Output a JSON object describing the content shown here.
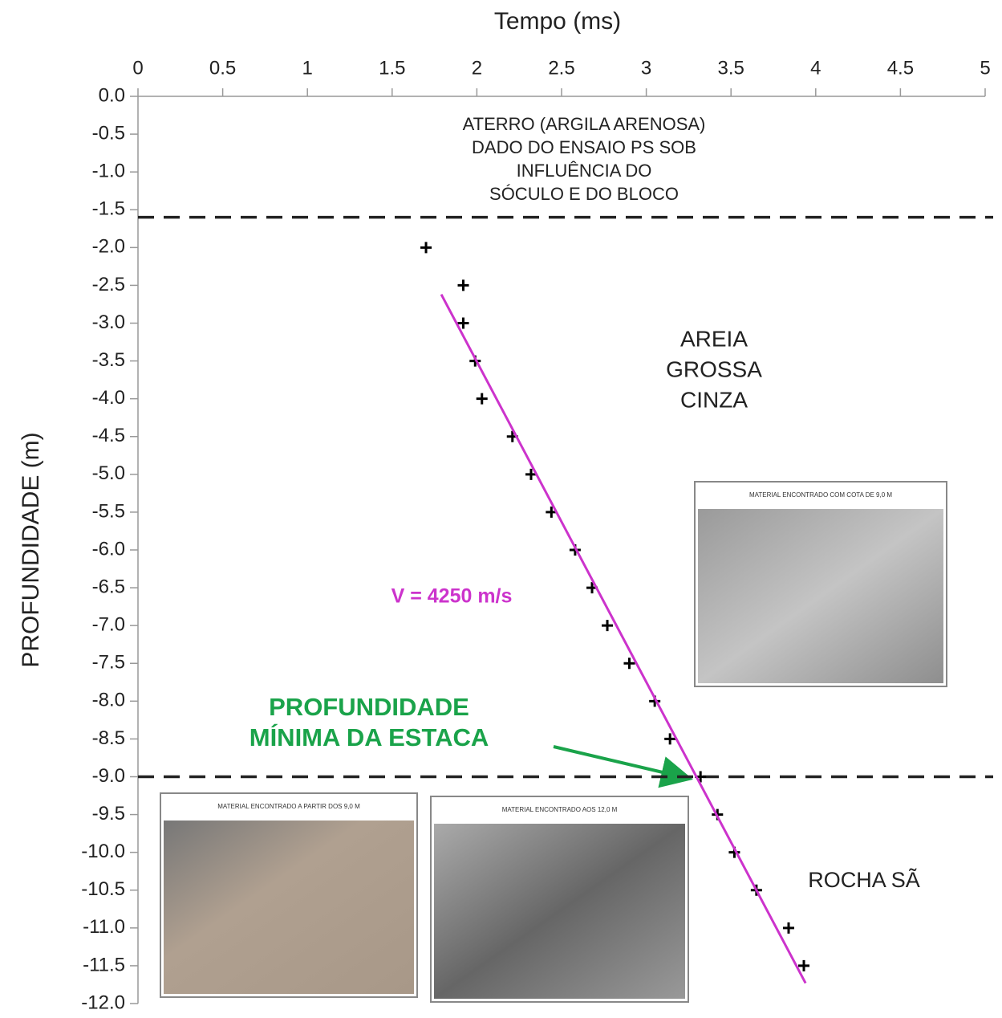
{
  "chart_data": {
    "type": "scatter",
    "x_label": "Tempo (ms)",
    "y_label": "PROFUNDIDADE (m)",
    "xlim": [
      0,
      5
    ],
    "xticks": [
      0,
      0.5,
      1,
      1.5,
      2,
      2.5,
      3,
      3.5,
      4,
      4.5,
      5
    ],
    "ylim": [
      -12,
      0
    ],
    "yticks": [
      {
        "value": 0,
        "label": "0.0"
      },
      -0.5,
      {
        "value": -1,
        "label": "-1.0"
      },
      -1.5,
      {
        "value": -2,
        "label": "-2.0"
      },
      -2.5,
      {
        "value": -3,
        "label": "-3.0"
      },
      -3.5,
      {
        "value": -4,
        "label": "-4.0"
      },
      -4.5,
      {
        "value": -5,
        "label": "-5.0"
      },
      -5.5,
      {
        "value": -6,
        "label": "-6.0"
      },
      -6.5,
      {
        "value": -7,
        "label": "-7.0"
      },
      -7.5,
      {
        "value": -8,
        "label": "-8.0"
      },
      -8.5,
      {
        "value": -9,
        "label": "-9.0"
      },
      -9.5,
      {
        "value": -10,
        "label": "-10.0"
      },
      -10.5,
      {
        "value": -11,
        "label": "-11.0"
      },
      -11.5,
      {
        "value": -12,
        "label": "-12.0"
      }
    ],
    "series": [
      {
        "type": "scatter",
        "color": "#000000",
        "x": [
          1.7,
          1.92,
          1.92,
          1.99,
          2.03,
          2.21,
          2.32,
          2.44,
          2.58,
          2.68,
          2.77,
          2.9,
          3.05,
          3.14,
          3.32,
          3.42,
          3.52,
          3.65,
          3.84,
          3.93
        ],
        "values": [
          -2.0,
          -2.5,
          -3.0,
          -3.5,
          -4.0,
          -4.5,
          -5.0,
          -5.5,
          -6.0,
          -6.5,
          -7.0,
          -7.5,
          -8.0,
          -8.5,
          -9.0,
          -9.5,
          -10.0,
          -10.5,
          -11.0,
          -11.5
        ]
      },
      {
        "type": "line",
        "color": "#cc33cc",
        "x": [
          1.79,
          3.94
        ],
        "values": [
          -2.62,
          -11.73
        ]
      }
    ],
    "hlines": [
      -1.6,
      -9.0
    ],
    "annotations": [
      {
        "lines": [
          "ATERRO (ARGILA ARENOSA)",
          "DADO DO ENSAIO PS SOB",
          "INFLUÊNCIA DO",
          "SÓCULO E DO BLOCO"
        ],
        "color": "#222222"
      },
      {
        "lines": [
          "AREIA",
          "GROSSA",
          "CINZA"
        ],
        "color": "#222222"
      },
      {
        "lines": [
          "ROCHA SÃ"
        ],
        "color": "#222222"
      },
      {
        "lines": [
          "PROFUNDIDADE",
          "MÍNIMA DA ESTACA"
        ],
        "color": "#1aa34a"
      },
      {
        "lines": [
          "V = 4250 m/s"
        ],
        "color": "#cc33cc"
      }
    ],
    "photos": [
      "MATERIAL ENCONTRADO COM COTA DE 9,0 M",
      "MATERIAL ENCONTRADO A PARTIR DOS 9,0 M",
      "MATERIAL ENCONTRADO AOS 12,0 M"
    ]
  }
}
